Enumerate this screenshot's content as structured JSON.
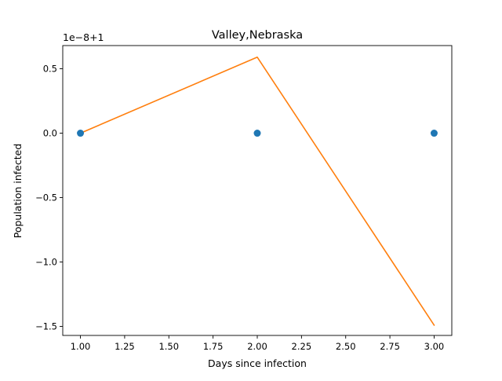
{
  "chart_data": {
    "type": "line",
    "title": "Valley,Nebraska",
    "xlabel": "Days since infection",
    "ylabel": "Population infected",
    "offset_label": "1e−8+1",
    "xlim": [
      0.9,
      3.1
    ],
    "ylim": [
      -1.57,
      0.68
    ],
    "x_ticks": [
      1.0,
      1.25,
      1.5,
      1.75,
      2.0,
      2.25,
      2.5,
      2.75,
      3.0
    ],
    "x_tick_labels": [
      "1.00",
      "1.25",
      "1.50",
      "1.75",
      "2.00",
      "2.25",
      "2.50",
      "2.75",
      "3.00"
    ],
    "y_ticks": [
      0.5,
      0.0,
      -0.5,
      -1.0,
      -1.5
    ],
    "y_tick_labels": [
      "0.5",
      "0.0",
      "−0.5",
      "−1.0",
      "−1.5"
    ],
    "grid": false,
    "legend": "none",
    "series": [
      {
        "kind": "scatter",
        "color": "#1f77b4",
        "x": [
          1,
          2,
          3
        ],
        "y": [
          0.0,
          0.0,
          0.0
        ]
      },
      {
        "kind": "line",
        "color": "#ff7f0e",
        "x": [
          1,
          2,
          3
        ],
        "y": [
          0.0,
          0.59,
          -1.49
        ]
      }
    ]
  }
}
